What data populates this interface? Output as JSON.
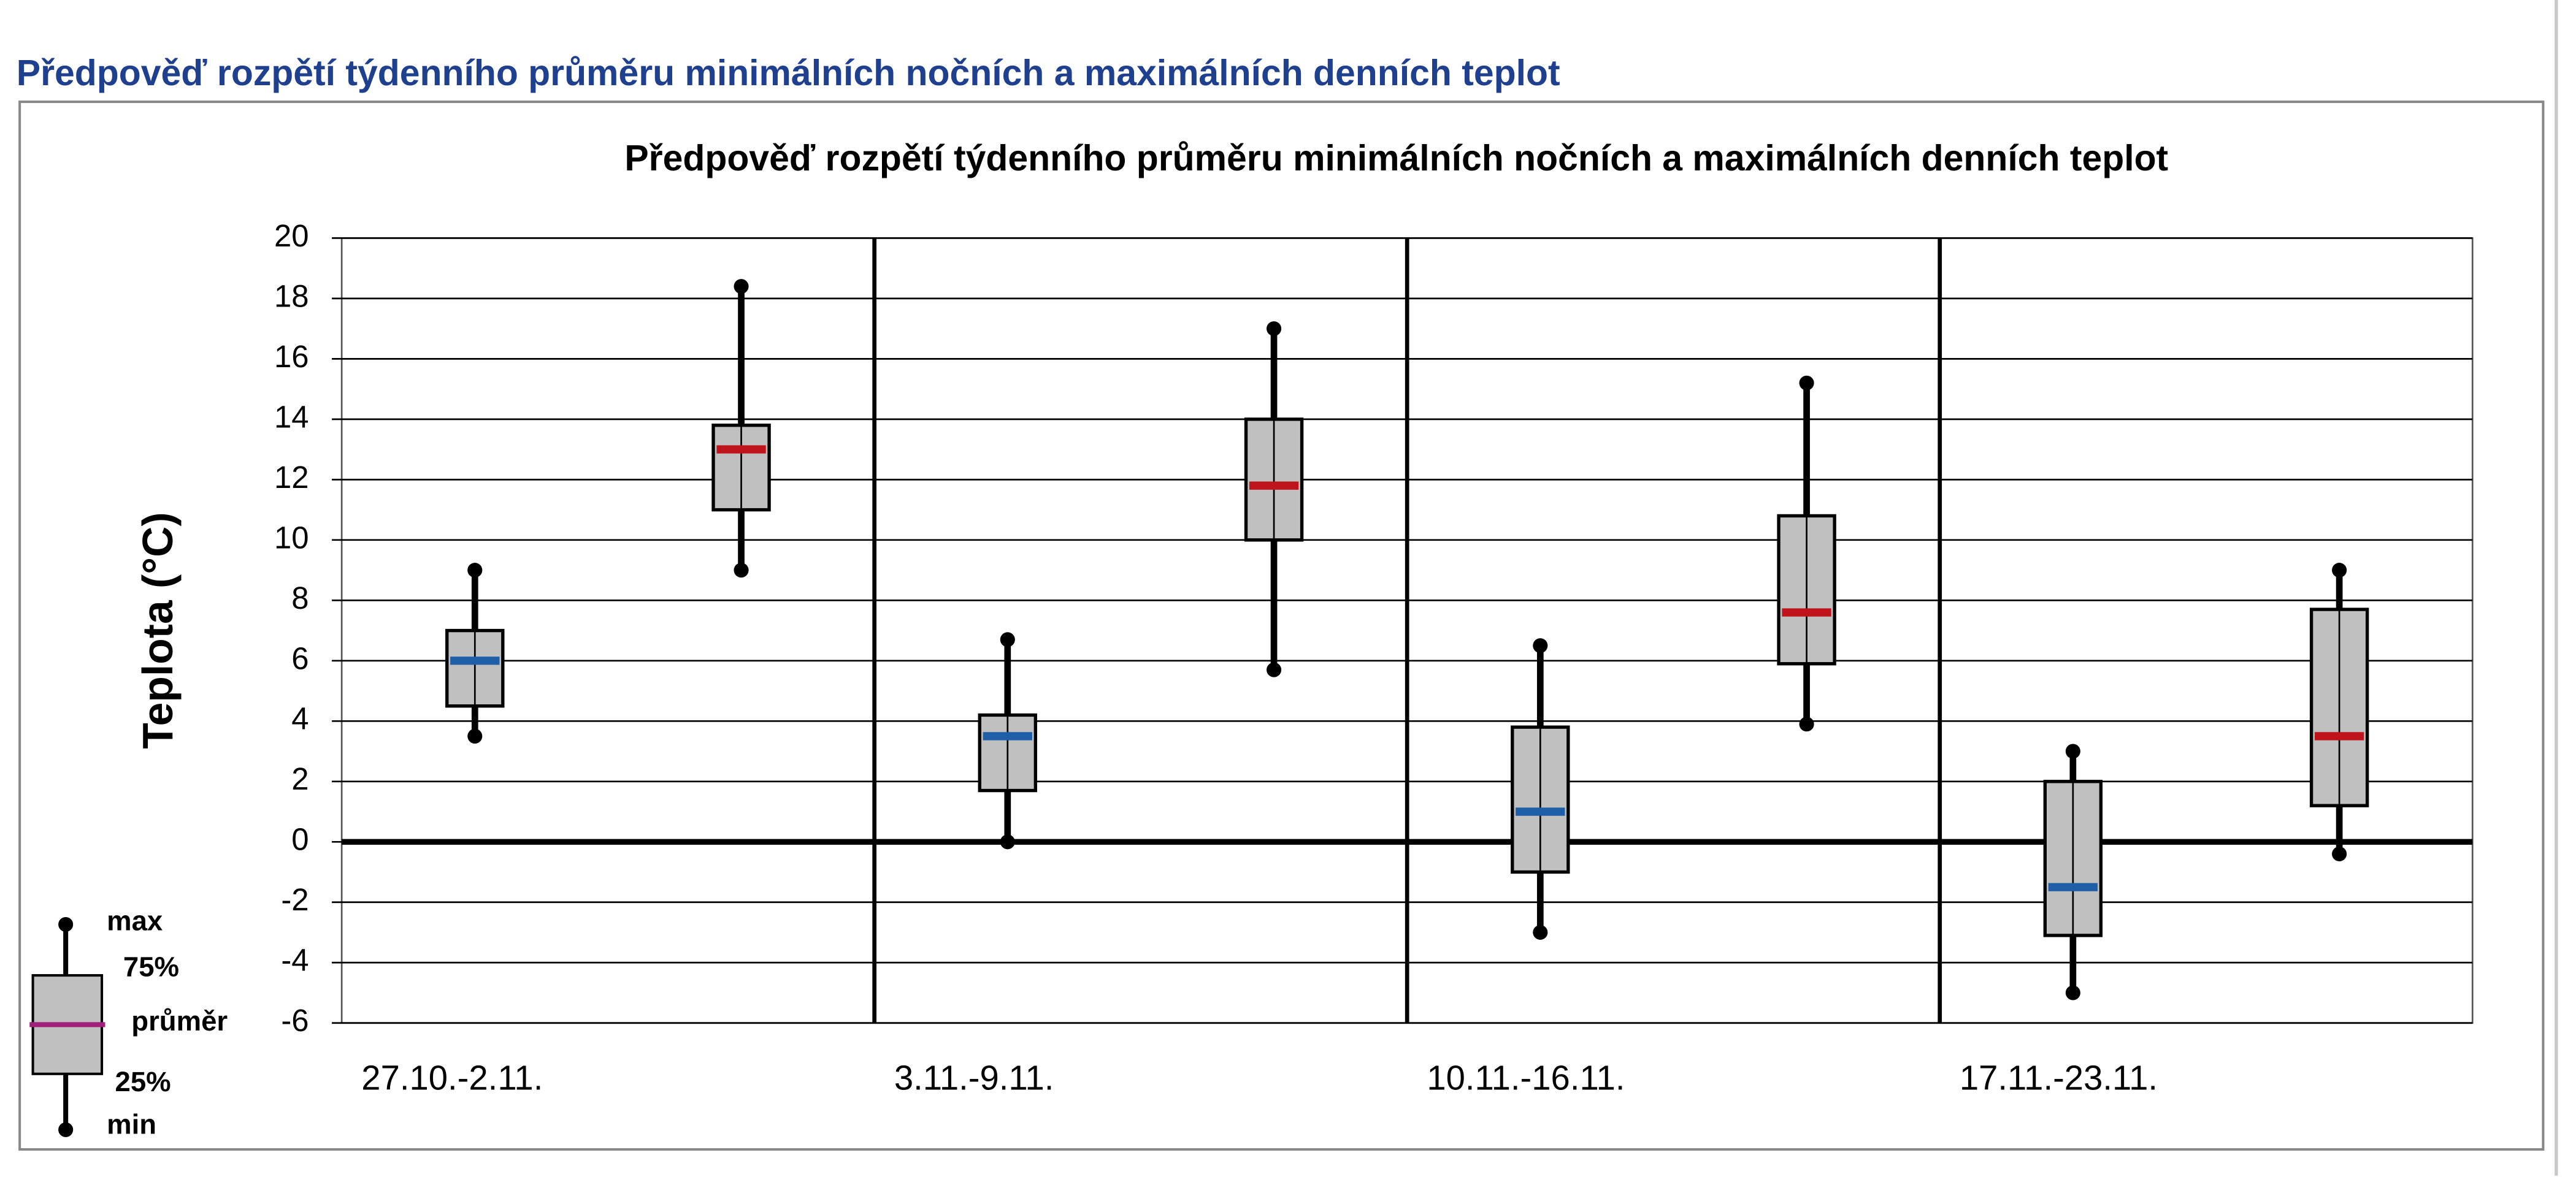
{
  "heading": "Předpověď rozpětí týdenního průměru minimálních nočních a maximálních denních teplot",
  "chart_data": {
    "type": "box",
    "title": "Předpověď rozpětí týdenního průměru minimálních nočních a maximálních denních teplot",
    "y_label": "Teplota (°C)",
    "categories": [
      "27.10.-2.11.",
      "3.11.-9.11.",
      "10.11.-16.11.",
      "17.11.-23.11."
    ],
    "series": [
      {
        "color": "#1f5fa8",
        "min": [
          3.5,
          0,
          -3,
          -5
        ],
        "q1": [
          4.5,
          1.7,
          -1,
          -3.1
        ],
        "mean": [
          6,
          3.5,
          1,
          -1.5
        ],
        "q3": [
          7,
          4.2,
          3.8,
          2
        ],
        "max": [
          9,
          6.7,
          6.5,
          3
        ]
      },
      {
        "color": "#c0141c",
        "min": [
          9,
          5.7,
          3.9,
          -0.4
        ],
        "q1": [
          11,
          10,
          5.9,
          1.2
        ],
        "mean": [
          13,
          11.8,
          7.6,
          3.5
        ],
        "q3": [
          13.8,
          14,
          10.8,
          7.7
        ],
        "max": [
          18.4,
          17,
          15.2,
          9
        ]
      }
    ],
    "box_color": "#c0c0c0",
    "ylim": [
      -6,
      20
    ],
    "yticks": [
      -6,
      -4,
      -2,
      0,
      2,
      4,
      6,
      8,
      10,
      12,
      14,
      16,
      18,
      20
    ],
    "grid": true,
    "legend": {
      "position": "lower left",
      "color": "#a0207a",
      "labels": [
        "max",
        "75%",
        "průměr",
        "25%",
        "min"
      ]
    }
  }
}
